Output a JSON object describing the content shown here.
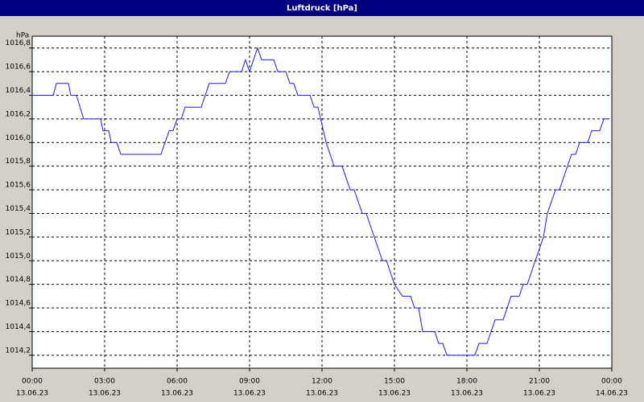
{
  "chart_data": {
    "type": "line",
    "title": "Luftdruck [hPa]",
    "y_unit": "hPa",
    "color": "#1a1aff",
    "grid": true,
    "x": [
      0,
      0.87,
      1.0,
      1.5,
      1.6,
      1.83,
      2.13,
      2.83,
      2.93,
      3.17,
      3.27,
      3.5,
      3.67,
      5.33,
      5.67,
      5.83,
      6.0,
      6.17,
      6.33,
      7.0,
      7.33,
      8.0,
      8.17,
      8.67,
      8.83,
      9.0,
      9.33,
      9.5,
      10.0,
      10.17,
      10.5,
      10.67,
      10.83,
      11.0,
      11.5,
      11.67,
      11.83,
      12.17,
      12.5,
      12.83,
      13.17,
      13.33,
      13.67,
      13.83,
      14.5,
      14.67,
      15.0,
      15.33,
      15.67,
      15.83,
      16.0,
      16.17,
      16.67,
      16.83,
      17.0,
      17.17,
      18.33,
      18.5,
      18.83,
      19.17,
      19.5,
      19.83,
      20.17,
      20.33,
      20.5,
      20.83,
      21.17,
      21.33,
      21.67,
      21.83,
      22.33,
      22.5,
      22.67,
      23.0,
      23.17,
      23.5,
      23.67,
      23.83
    ],
    "values": [
      1016.4,
      1016.4,
      1016.5,
      1016.5,
      1016.4,
      1016.4,
      1016.2,
      1016.2,
      1016.1,
      1016.1,
      1016.0,
      1016.0,
      1015.9,
      1015.9,
      1016.1,
      1016.1,
      1016.2,
      1016.2,
      1016.3,
      1016.3,
      1016.5,
      1016.5,
      1016.6,
      1016.6,
      1016.7,
      1016.6,
      1016.8,
      1016.7,
      1016.7,
      1016.6,
      1016.6,
      1016.5,
      1016.5,
      1016.4,
      1016.4,
      1016.3,
      1016.3,
      1016.0,
      1015.8,
      1015.8,
      1015.6,
      1015.6,
      1015.4,
      1015.4,
      1015.0,
      1015.0,
      1014.8,
      1014.7,
      1014.7,
      1014.6,
      1014.6,
      1014.4,
      1014.4,
      1014.3,
      1014.3,
      1014.2,
      1014.2,
      1014.3,
      1014.3,
      1014.5,
      1014.5,
      1014.7,
      1014.7,
      1014.8,
      1014.8,
      1015.0,
      1015.2,
      1015.4,
      1015.6,
      1015.6,
      1015.9,
      1015.9,
      1016.0,
      1016.0,
      1016.1,
      1016.1,
      1016.2,
      1016.2
    ],
    "xlim": [
      0,
      24
    ],
    "xticks": [
      {
        "value": 0,
        "label": "00:00"
      },
      {
        "value": 3,
        "label": "03:00"
      },
      {
        "value": 6,
        "label": "06:00"
      },
      {
        "value": 9,
        "label": "09:00"
      },
      {
        "value": 12,
        "label": "12:00"
      },
      {
        "value": 15,
        "label": "15:00"
      },
      {
        "value": 18,
        "label": "18:00"
      },
      {
        "value": 21,
        "label": "21:00"
      },
      {
        "value": 24,
        "label": "00:00"
      }
    ],
    "xtick_dates": [
      "13.06.23",
      "13.06.23",
      "13.06.23",
      "13.06.23",
      "13.06.23",
      "13.06.23",
      "13.06.23",
      "13.06.23",
      "14.06.23"
    ],
    "ylim": [
      1014.09,
      1016.9
    ],
    "yticks": [
      {
        "value": 1014.2,
        "label": "1014,2"
      },
      {
        "value": 1014.4,
        "label": "1014,4"
      },
      {
        "value": 1014.6,
        "label": "1014,6"
      },
      {
        "value": 1014.8,
        "label": "1014,8"
      },
      {
        "value": 1015.0,
        "label": "1015,0"
      },
      {
        "value": 1015.2,
        "label": "1015,2"
      },
      {
        "value": 1015.4,
        "label": "1015,4"
      },
      {
        "value": 1015.6,
        "label": "1015,6"
      },
      {
        "value": 1015.8,
        "label": "1015,8"
      },
      {
        "value": 1016.0,
        "label": "1016,0"
      },
      {
        "value": 1016.2,
        "label": "1016,2"
      },
      {
        "value": 1016.4,
        "label": "1016,4"
      },
      {
        "value": 1016.6,
        "label": "1016,6"
      },
      {
        "value": 1016.8,
        "label": "1016,8"
      }
    ]
  }
}
